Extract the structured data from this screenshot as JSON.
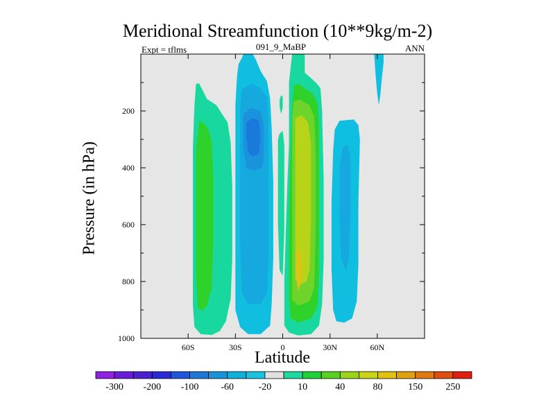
{
  "chart_data": {
    "type": "heatmap",
    "title": "Meridional Streamfunction (10**9kg/m-2)",
    "left_string": "Expt = tflms",
    "center_string": "091_9_MaBP",
    "right_string": "ANN",
    "xlabel": "Latitude",
    "ylabel": "Pressure (in hPa)",
    "xlim": [
      -90,
      90
    ],
    "ylim": [
      1000,
      0
    ],
    "x_ticks": [
      {
        "value": -60,
        "label": "60S"
      },
      {
        "value": -30,
        "label": "30S"
      },
      {
        "value": 0,
        "label": "0"
      },
      {
        "value": 30,
        "label": "30N"
      },
      {
        "value": 60,
        "label": "60N"
      }
    ],
    "y_ticks": [
      {
        "value": 200,
        "label": "200"
      },
      {
        "value": 400,
        "label": "400"
      },
      {
        "value": 600,
        "label": "600"
      },
      {
        "value": 800,
        "label": "800"
      },
      {
        "value": 1000,
        "label": "1000"
      }
    ],
    "y_minor_ticks": [
      100,
      300,
      500,
      700,
      900
    ],
    "colorbar": {
      "colors": [
        "#8e22e0",
        "#6a1cd8",
        "#4a20d0",
        "#2a2ad6",
        "#1f55d8",
        "#1f78d8",
        "#1a94d8",
        "#0fb0d9",
        "#18c3e0",
        "#e0e0e0",
        "#1fd8a0",
        "#22d03a",
        "#5ad120",
        "#9ad418",
        "#c8d416",
        "#e0c20f",
        "#e0a00f",
        "#e07a10",
        "#e04d10",
        "#e01e10"
      ],
      "labels": [
        "-300",
        "-200",
        "-100",
        "-60",
        "-20",
        "10",
        "40",
        "80",
        "150",
        "250"
      ]
    },
    "cells": [
      {
        "id": "a1",
        "color": "#18d8a0",
        "level": "10 to 20",
        "points": [
          [
            -55,
            105
          ],
          [
            -53,
            103
          ],
          [
            -51,
            125
          ],
          [
            -48,
            158
          ],
          [
            -42,
            180
          ],
          [
            -38,
            215
          ],
          [
            -35,
            240
          ],
          [
            -33,
            310
          ],
          [
            -32,
            470
          ],
          [
            -32,
            720
          ],
          [
            -33,
            860
          ],
          [
            -36,
            940
          ],
          [
            -40,
            975
          ],
          [
            -45,
            988
          ],
          [
            -52,
            985
          ],
          [
            -56,
            960
          ],
          [
            -57,
            880
          ],
          [
            -57,
            620
          ],
          [
            -57,
            330
          ],
          [
            -56,
            180
          ]
        ]
      },
      {
        "id": "a2",
        "color": "#2ed22a",
        "level": "20 to 40",
        "points": [
          [
            -53,
            235
          ],
          [
            -50,
            245
          ],
          [
            -47,
            265
          ],
          [
            -45,
            310
          ],
          [
            -44,
            440
          ],
          [
            -44,
            660
          ],
          [
            -45,
            820
          ],
          [
            -48,
            885
          ],
          [
            -51,
            905
          ],
          [
            -54,
            890
          ],
          [
            -55,
            780
          ],
          [
            -55,
            520
          ],
          [
            -55,
            330
          ]
        ]
      },
      {
        "id": "b1",
        "color": "#10bfdf",
        "level": "-10 to -20",
        "points": [
          [
            -28,
            35
          ],
          [
            -26,
            15
          ],
          [
            -25,
            0
          ],
          [
            -19,
            0
          ],
          [
            -17,
            20
          ],
          [
            -14,
            60
          ],
          [
            -10,
            95
          ],
          [
            -8,
            155
          ],
          [
            -7,
            260
          ],
          [
            -6,
            450
          ],
          [
            -6,
            720
          ],
          [
            -7,
            880
          ],
          [
            -8,
            955
          ],
          [
            -14,
            985
          ],
          [
            -22,
            985
          ],
          [
            -27,
            960
          ],
          [
            -30,
            900
          ],
          [
            -30,
            700
          ],
          [
            -30,
            420
          ],
          [
            -30,
            180
          ],
          [
            -29,
            80
          ]
        ]
      },
      {
        "id": "b2",
        "color": "#15a9e0",
        "level": "-20 to -40",
        "points": [
          [
            -26,
            125
          ],
          [
            -20,
            105
          ],
          [
            -14,
            120
          ],
          [
            -10,
            150
          ],
          [
            -9,
            230
          ],
          [
            -9,
            430
          ],
          [
            -9,
            720
          ],
          [
            -10,
            840
          ],
          [
            -14,
            880
          ],
          [
            -22,
            880
          ],
          [
            -26,
            840
          ],
          [
            -27,
            660
          ],
          [
            -27,
            360
          ],
          [
            -27,
            200
          ]
        ]
      },
      {
        "id": "b3",
        "color": "#1a92dc",
        "level": "-40 to -60",
        "points": [
          [
            -25,
            210
          ],
          [
            -20,
            190
          ],
          [
            -14,
            200
          ],
          [
            -12,
            250
          ],
          [
            -12,
            360
          ],
          [
            -13,
            400
          ],
          [
            -18,
            410
          ],
          [
            -23,
            400
          ],
          [
            -25,
            330
          ]
        ]
      },
      {
        "id": "b4",
        "color": "#1a7adc",
        "level": "-60 to -80",
        "points": [
          [
            -23,
            240
          ],
          [
            -19,
            225
          ],
          [
            -15,
            235
          ],
          [
            -14,
            300
          ],
          [
            -15,
            350
          ],
          [
            -19,
            360
          ],
          [
            -22,
            345
          ],
          [
            -23,
            290
          ]
        ]
      },
      {
        "id": "c1",
        "color": "#18d8a0",
        "level": "10 to 20",
        "points": [
          [
            -2,
            160
          ],
          [
            -1,
            145
          ],
          [
            0,
            150
          ],
          [
            0,
            190
          ],
          [
            -1,
            210
          ],
          [
            -2,
            185
          ]
        ]
      },
      {
        "id": "c2",
        "color": "#18d8a0",
        "level": "10 to 20",
        "points": [
          [
            -3,
            300
          ],
          [
            -2,
            280
          ],
          [
            0,
            270
          ],
          [
            1,
            320
          ],
          [
            1,
            620
          ],
          [
            0,
            780
          ],
          [
            -2,
            760
          ],
          [
            -3,
            600
          ],
          [
            -3,
            420
          ]
        ]
      },
      {
        "id": "d1",
        "color": "#18d8a0",
        "level": "10 to 20",
        "points": [
          [
            6,
            0
          ],
          [
            14,
            0
          ],
          [
            14,
            65
          ],
          [
            17,
            80
          ],
          [
            21,
            100
          ],
          [
            24,
            120
          ],
          [
            25,
            200
          ],
          [
            26,
            450
          ],
          [
            26,
            720
          ],
          [
            25,
            880
          ],
          [
            23,
            955
          ],
          [
            18,
            985
          ],
          [
            10,
            990
          ],
          [
            4,
            980
          ],
          [
            1,
            955
          ],
          [
            1,
            800
          ],
          [
            2,
            620
          ],
          [
            3,
            450
          ],
          [
            4,
            320
          ],
          [
            4,
            100
          ]
        ]
      },
      {
        "id": "d2",
        "color": "#2ed22a",
        "level": "20 to 40",
        "points": [
          [
            7,
            110
          ],
          [
            10,
            105
          ],
          [
            14,
            120
          ],
          [
            19,
            140
          ],
          [
            22,
            170
          ],
          [
            23,
            260
          ],
          [
            23,
            520
          ],
          [
            23,
            760
          ],
          [
            22,
            890
          ],
          [
            18,
            930
          ],
          [
            10,
            945
          ],
          [
            5,
            930
          ],
          [
            4,
            860
          ],
          [
            4,
            560
          ],
          [
            5,
            320
          ],
          [
            6,
            180
          ]
        ]
      },
      {
        "id": "d3",
        "color": "#6fd42a",
        "level": "40 to 60",
        "points": [
          [
            7,
            165
          ],
          [
            11,
            160
          ],
          [
            17,
            180
          ],
          [
            20,
            220
          ],
          [
            21,
            360
          ],
          [
            21,
            600
          ],
          [
            20,
            820
          ],
          [
            17,
            870
          ],
          [
            10,
            885
          ],
          [
            6,
            865
          ],
          [
            6,
            600
          ],
          [
            6,
            360
          ],
          [
            6,
            220
          ]
        ]
      },
      {
        "id": "d4",
        "color": "#b8d418",
        "level": "60 to 80",
        "points": [
          [
            8,
            225
          ],
          [
            12,
            215
          ],
          [
            16,
            240
          ],
          [
            18,
            320
          ],
          [
            18,
            580
          ],
          [
            17,
            760
          ],
          [
            15,
            800
          ],
          [
            10,
            815
          ],
          [
            8,
            790
          ],
          [
            8,
            560
          ],
          [
            8,
            340
          ]
        ]
      },
      {
        "id": "d5",
        "color": "#dcc318",
        "level": "80 to 100",
        "points": [
          [
            9,
            690
          ],
          [
            11,
            690
          ],
          [
            12,
            730
          ],
          [
            12,
            790
          ],
          [
            10,
            835
          ],
          [
            9,
            810
          ],
          [
            8,
            760
          ]
        ]
      },
      {
        "id": "e1",
        "color": "#10bfdf",
        "level": "-10 to -20",
        "points": [
          [
            36,
            235
          ],
          [
            45,
            230
          ],
          [
            48,
            250
          ],
          [
            49,
            300
          ],
          [
            48,
            520
          ],
          [
            48,
            740
          ],
          [
            47,
            870
          ],
          [
            44,
            930
          ],
          [
            39,
            945
          ],
          [
            34,
            940
          ],
          [
            32,
            900
          ],
          [
            31,
            760
          ],
          [
            31,
            520
          ],
          [
            32,
            340
          ],
          [
            33,
            265
          ]
        ]
      },
      {
        "id": "e2",
        "color": "#15a9e0",
        "level": "-20 to -40",
        "points": [
          [
            38,
            330
          ],
          [
            41,
            320
          ],
          [
            43,
            360
          ],
          [
            43,
            560
          ],
          [
            42,
            720
          ],
          [
            40,
            760
          ],
          [
            37,
            720
          ],
          [
            36,
            560
          ],
          [
            36,
            400
          ]
        ]
      },
      {
        "id": "f1",
        "color": "#10bfdf",
        "level": "-10 to -20",
        "points": [
          [
            58,
            0
          ],
          [
            64,
            0
          ],
          [
            64,
            30
          ],
          [
            63,
            80
          ],
          [
            62,
            140
          ],
          [
            61,
            180
          ],
          [
            60,
            140
          ],
          [
            59,
            80
          ]
        ]
      }
    ]
  }
}
